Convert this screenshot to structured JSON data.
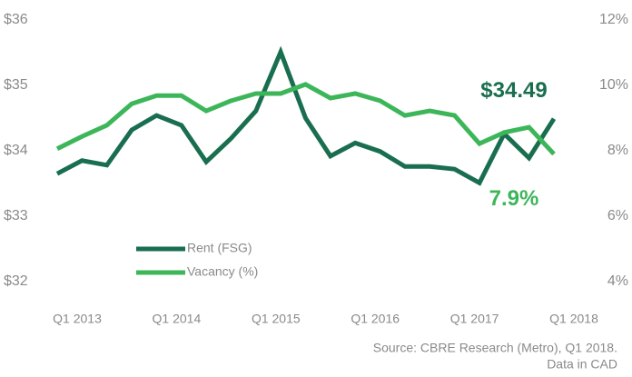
{
  "chart_data": {
    "type": "line",
    "categories": [
      "Q1 2013",
      null,
      null,
      null,
      "Q1 2014",
      null,
      null,
      null,
      "Q1 2015",
      null,
      null,
      null,
      "Q1 2016",
      null,
      null,
      null,
      "Q1 2017",
      null,
      null,
      null,
      "Q1 2018"
    ],
    "series": [
      {
        "name": "Rent (FSG)",
        "color": "#1a6e50",
        "values": [
          33.65,
          33.85,
          33.78,
          34.32,
          34.54,
          34.39,
          33.83,
          34.19,
          34.61,
          35.51,
          34.5,
          33.92,
          34.12,
          33.99,
          33.76,
          33.76,
          33.72,
          33.51,
          34.26,
          33.89,
          34.49
        ],
        "value_labels": [
          null,
          null,
          null,
          null,
          null,
          null,
          null,
          null,
          null,
          null,
          null,
          null,
          null,
          null,
          null,
          null,
          null,
          null,
          null,
          null,
          "$34.49"
        ]
      },
      {
        "name": "Vacancy (%)",
        "color": "#3db65a",
        "axis": "y2",
        "values": [
          8.06,
          8.44,
          8.78,
          9.44,
          9.69,
          9.69,
          9.22,
          9.53,
          9.75,
          9.75,
          10.03,
          9.61,
          9.75,
          9.53,
          9.08,
          9.22,
          9.08,
          8.22,
          8.56,
          8.72,
          7.9
        ],
        "value_labels": [
          null,
          null,
          null,
          null,
          null,
          null,
          null,
          null,
          null,
          null,
          null,
          null,
          null,
          null,
          null,
          null,
          null,
          null,
          null,
          null,
          "7.9%"
        ]
      }
    ],
    "ylim": [
      32,
      36
    ],
    "yticks": [
      {
        "value": 32,
        "label": "$32"
      },
      {
        "value": 33,
        "label": "$33"
      },
      {
        "value": 34,
        "label": "$34"
      },
      {
        "value": 35,
        "label": "$35"
      },
      {
        "value": 36,
        "label": "$36"
      }
    ],
    "y2lim": [
      4,
      12
    ],
    "y2ticks": [
      {
        "value": 4,
        "label": "4%"
      },
      {
        "value": 6,
        "label": "6%"
      },
      {
        "value": 8,
        "label": "8%"
      },
      {
        "value": 10,
        "label": "10%"
      },
      {
        "value": 12,
        "label": "12%"
      }
    ],
    "grid": false,
    "legend": "lower-left",
    "source": [
      "Source: CBRE Research (Metro), Q1 2018.",
      "Data in CAD"
    ]
  }
}
